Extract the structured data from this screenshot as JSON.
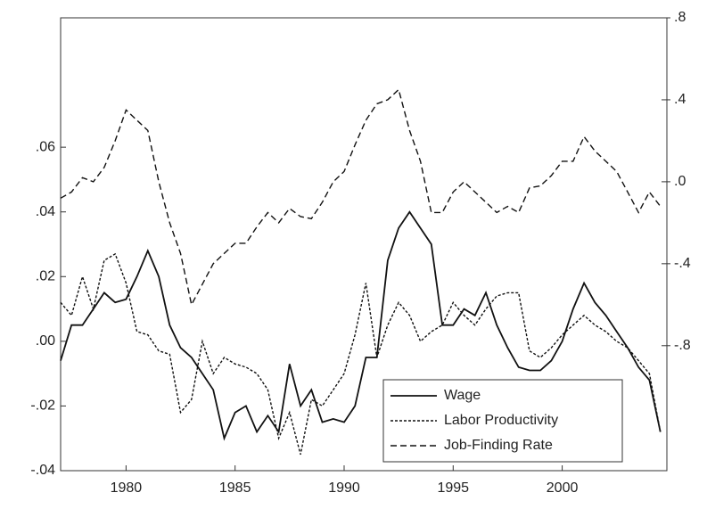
{
  "chart_data": {
    "type": "line",
    "x": [
      1977,
      1977.5,
      1978,
      1978.5,
      1979,
      1979.5,
      1980,
      1980.5,
      1981,
      1981.5,
      1982,
      1982.5,
      1983,
      1983.5,
      1984,
      1984.5,
      1985,
      1985.5,
      1986,
      1986.5,
      1987,
      1987.5,
      1988,
      1988.5,
      1989,
      1989.5,
      1990,
      1990.5,
      1991,
      1991.5,
      1992,
      1992.5,
      1993,
      1993.5,
      1994,
      1994.5,
      1995,
      1995.5,
      1996,
      1996.5,
      1997,
      1997.5,
      1998,
      1998.5,
      1999,
      1999.5,
      2000,
      2000.5,
      2001,
      2001.5,
      2002,
      2002.5,
      2003,
      2003.5,
      2004,
      2004.5
    ],
    "xlim": [
      1977,
      2004.8
    ],
    "xticks": [
      1980,
      1985,
      1990,
      1995,
      2000
    ],
    "ylim": [
      -0.04,
      0.1
    ],
    "yticks": [
      {
        "value": -0.04,
        "label": "-.04"
      },
      {
        "value": -0.02,
        "label": "-.02"
      },
      {
        "value": 0,
        "label": ".00"
      },
      {
        "value": 0.02,
        "label": ".02"
      },
      {
        "value": 0.04,
        "label": ".04"
      },
      {
        "value": 0.06,
        "label": ".06"
      }
    ],
    "y2lim": [
      -1.41,
      0.8
    ],
    "y2ticks": [
      {
        "value": -0.8,
        "label": "-.8"
      },
      {
        "value": -0.4,
        "label": "-.4"
      },
      {
        "value": 0,
        "label": ".0"
      },
      {
        "value": 0.4,
        "label": ".4"
      },
      {
        "value": 0.8,
        "label": ".8"
      }
    ],
    "legend": "bottom-right",
    "series": [
      {
        "name": "Wage",
        "color": "#111111",
        "dash": "solid",
        "values": [
          -0.006,
          0.005,
          0.005,
          0.01,
          0.015,
          0.012,
          0.013,
          0.02,
          0.028,
          0.02,
          0.005,
          -0.002,
          -0.005,
          -0.01,
          -0.015,
          -0.03,
          -0.022,
          -0.02,
          -0.028,
          -0.023,
          -0.028,
          -0.007,
          -0.02,
          -0.015,
          -0.025,
          -0.024,
          -0.025,
          -0.02,
          -0.005,
          -0.005,
          0.025,
          0.035,
          0.04,
          0.035,
          0.03,
          0.005,
          0.005,
          0.01,
          0.008,
          0.015,
          0.005,
          -0.002,
          -0.008,
          -0.009,
          -0.009,
          -0.006,
          0,
          0.01,
          0.018,
          0.012,
          0.008,
          0.003,
          -0.002,
          -0.008,
          -0.012,
          -0.028
        ]
      },
      {
        "name": "Labor Productivity",
        "color": "#111111",
        "dash": "dotted",
        "values": [
          0.012,
          0.008,
          0.02,
          0.01,
          0.025,
          0.027,
          0.018,
          0.003,
          0.002,
          -0.003,
          -0.004,
          -0.022,
          -0.018,
          0,
          -0.01,
          -0.005,
          -0.007,
          -0.008,
          -0.01,
          -0.015,
          -0.03,
          -0.022,
          -0.035,
          -0.018,
          -0.02,
          -0.015,
          -0.01,
          0.002,
          0.018,
          -0.005,
          0.005,
          0.012,
          0.008,
          0,
          0.003,
          0.005,
          0.012,
          0.008,
          0.005,
          0.01,
          0.014,
          0.015,
          0.015,
          -0.003,
          -0.005,
          -0.002,
          0.002,
          0.005,
          0.008,
          0.005,
          0.003,
          0,
          -0.002,
          -0.006,
          -0.01,
          -0.028
        ]
      },
      {
        "name": "Job-Finding Rate",
        "color": "#111111",
        "dash": "dashed",
        "axis": "y2",
        "values": [
          -0.08,
          -0.05,
          0.02,
          0,
          0.07,
          0.2,
          0.35,
          0.3,
          0.25,
          0,
          -0.2,
          -0.35,
          -0.6,
          -0.5,
          -0.4,
          -0.35,
          -0.3,
          -0.3,
          -0.22,
          -0.15,
          -0.2,
          -0.13,
          -0.17,
          -0.18,
          -0.1,
          0,
          0.05,
          0.18,
          0.3,
          0.38,
          0.4,
          0.45,
          0.25,
          0.1,
          -0.15,
          -0.15,
          -0.05,
          0,
          -0.05,
          -0.1,
          -0.15,
          -0.12,
          -0.15,
          -0.03,
          -0.02,
          0.03,
          0.1,
          0.1,
          0.22,
          0.15,
          0.1,
          0.05,
          -0.05,
          -0.15,
          -0.05,
          -0.12
        ]
      }
    ]
  }
}
